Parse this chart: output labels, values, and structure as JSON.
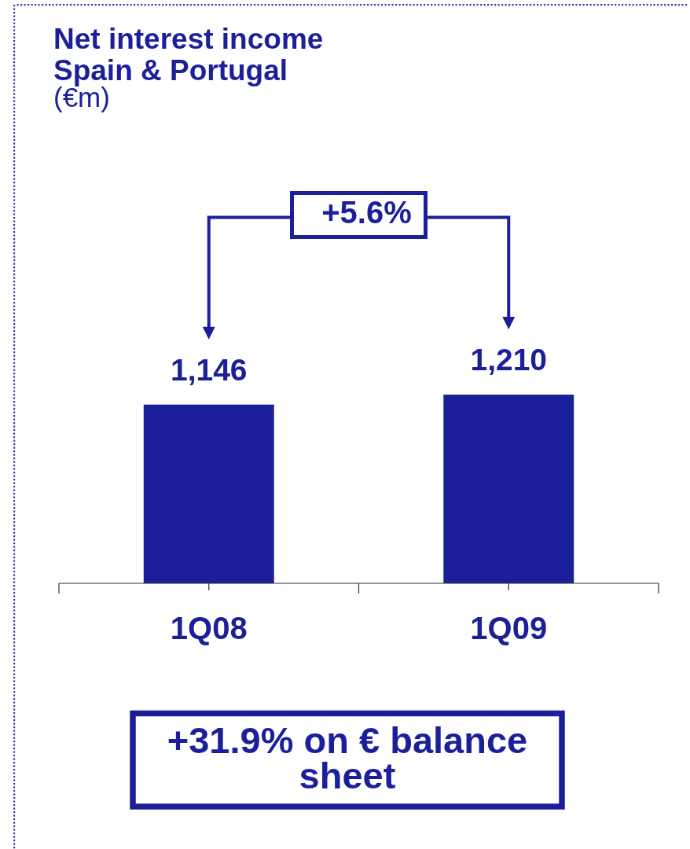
{
  "chart_data": {
    "type": "bar",
    "title": "Net interest income Spain & Portugal",
    "subtitle": "(€m)",
    "categories": [
      "1Q08",
      "1Q09"
    ],
    "values": [
      1146,
      1210
    ],
    "value_labels": [
      "1,146",
      "1,210"
    ],
    "color": "#1b1f9a",
    "annotations": [
      "+5.6%",
      "+31.9% on € balance sheet"
    ]
  }
}
